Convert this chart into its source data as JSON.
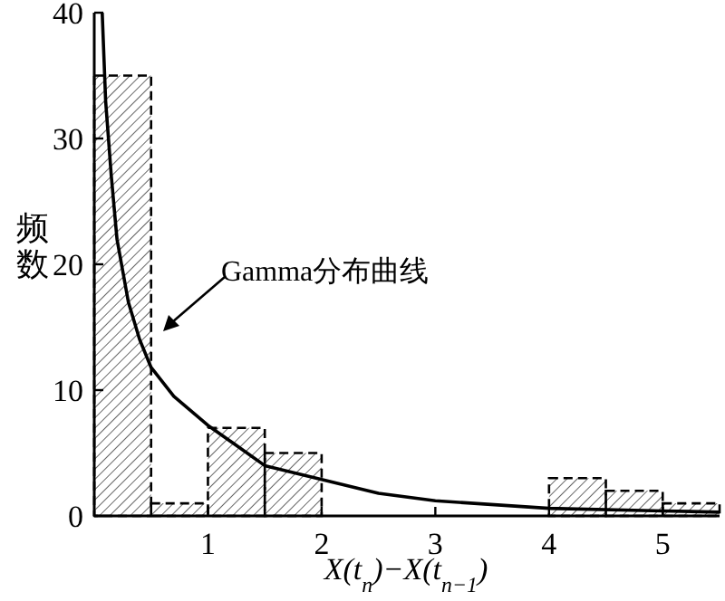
{
  "chart_data": {
    "type": "histogram",
    "xlabel": "X(t$_{n}$)−X(t$_{n−1}$)",
    "ylabel": "频数",
    "xlim": [
      0,
      5.5
    ],
    "ylim": [
      0,
      40
    ],
    "xticks": [
      1,
      2,
      3,
      4,
      5
    ],
    "yticks": [
      0,
      10,
      20,
      30,
      40
    ],
    "bins": [
      0,
      0.5,
      1,
      1.5,
      2,
      2.5,
      3,
      3.5,
      4,
      4.5,
      5,
      5.5
    ],
    "values": [
      35,
      1,
      7,
      5,
      null,
      null,
      null,
      null,
      3,
      2,
      1
    ],
    "color": "#000000",
    "series": [
      {
        "type": "line",
        "color": "#000000",
        "x": [
          0.07,
          0.1,
          0.15,
          0.2,
          0.3,
          0.4,
          0.5,
          0.7,
          1.0,
          1.5,
          2.0,
          2.5,
          3.0,
          4.0,
          5.0,
          5.5
        ],
        "values": [
          40,
          33,
          27,
          22,
          17,
          14,
          11.8,
          9.5,
          7.2,
          4.0,
          2.9,
          1.8,
          1.2,
          0.6,
          0.4,
          0.3
        ]
      }
    ],
    "annotations": [
      "Gamma分布曲线"
    ],
    "grid": false,
    "legend": false
  }
}
